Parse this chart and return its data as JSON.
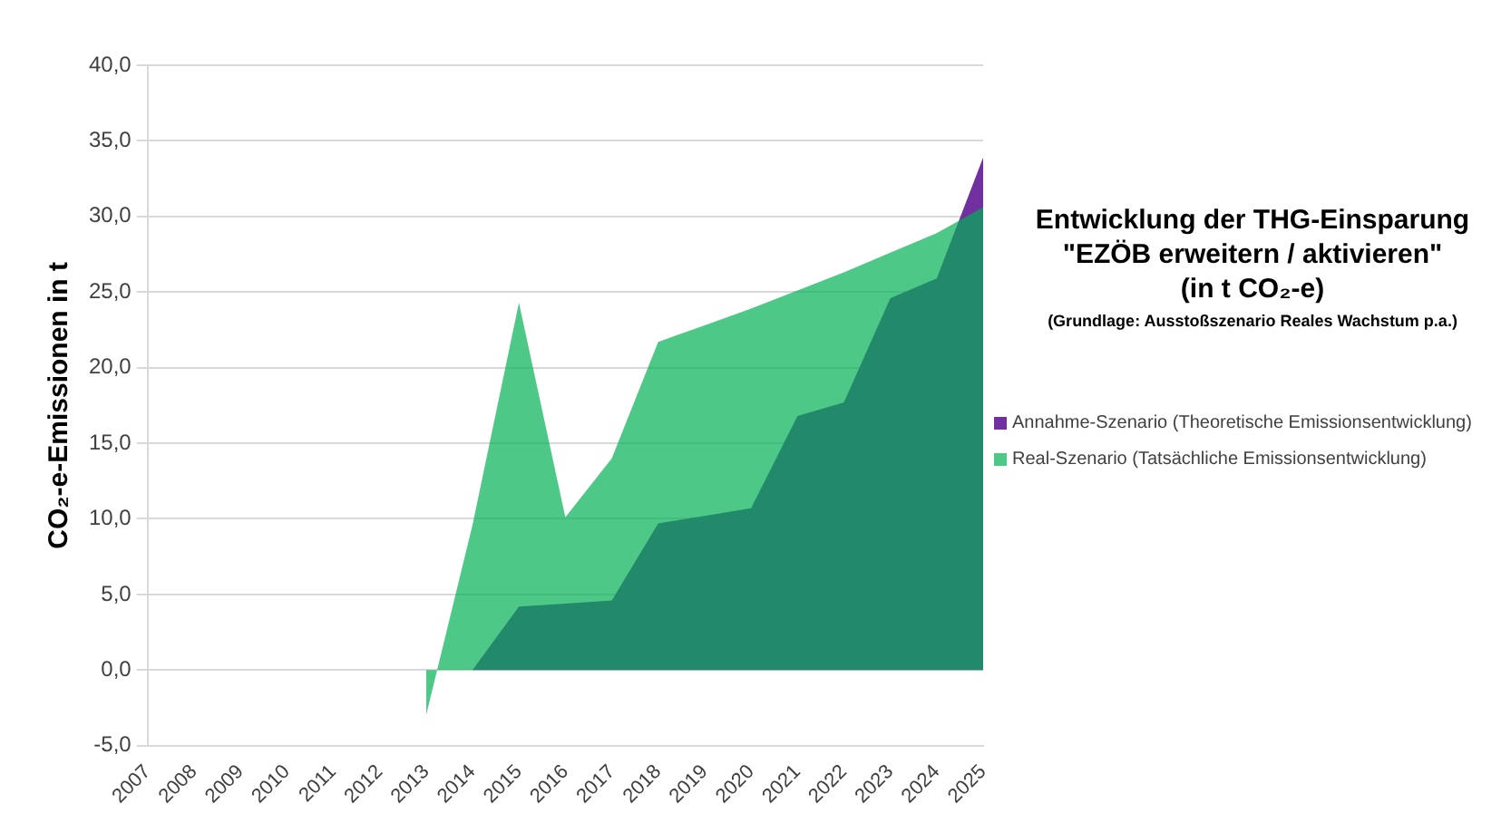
{
  "chart_data": {
    "type": "area",
    "title": "Entwicklung der THG-Einsparung\n\"EZÖB erweitern / aktivieren\"\n(in t CO₂-e)",
    "subtitle": "(Grundlage: Ausstoßszenario Reales Wachstum p.a.)",
    "ylabel": "CO₂-e-Emissionen in t",
    "categories": [
      "2007",
      "2008",
      "2009",
      "2010",
      "2011",
      "2012",
      "2013",
      "2014",
      "2015",
      "2016",
      "2017",
      "2018",
      "2019",
      "2020",
      "2021",
      "2022",
      "2023",
      "2024",
      "2025"
    ],
    "series": [
      {
        "name": "Annahme-Szenario (Theoretische Emissionsentwicklung)",
        "color": "#7030a0",
        "values": [
          0,
          0,
          0,
          0,
          0,
          0,
          0,
          0,
          4.2,
          4.4,
          4.6,
          9.7,
          10.2,
          10.7,
          16.8,
          17.7,
          24.6,
          25.9,
          33.9
        ]
      },
      {
        "name": "Real-Szenario (Tatsächliche Emissionsentwicklung)",
        "color": "#4ec887",
        "values": [
          null,
          null,
          null,
          null,
          null,
          null,
          -3.0,
          9.6,
          24.3,
          10.1,
          14.0,
          21.7,
          22.8,
          23.9,
          25.1,
          26.3,
          27.6,
          28.9,
          30.6
        ]
      }
    ],
    "ylim": [
      -5,
      40
    ],
    "yticks": [
      {
        "value": -5,
        "label": "-5,0"
      },
      {
        "value": 0,
        "label": "0,0"
      },
      {
        "value": 5,
        "label": "5,0"
      },
      {
        "value": 10,
        "label": "10,0"
      },
      {
        "value": 15,
        "label": "15,0"
      },
      {
        "value": 20,
        "label": "20,0"
      },
      {
        "value": 25,
        "label": "25,0"
      },
      {
        "value": 30,
        "label": "30,0"
      },
      {
        "value": 35,
        "label": "35,0"
      },
      {
        "value": 40,
        "label": "40,0"
      }
    ],
    "grid": "y",
    "legend": "right"
  }
}
